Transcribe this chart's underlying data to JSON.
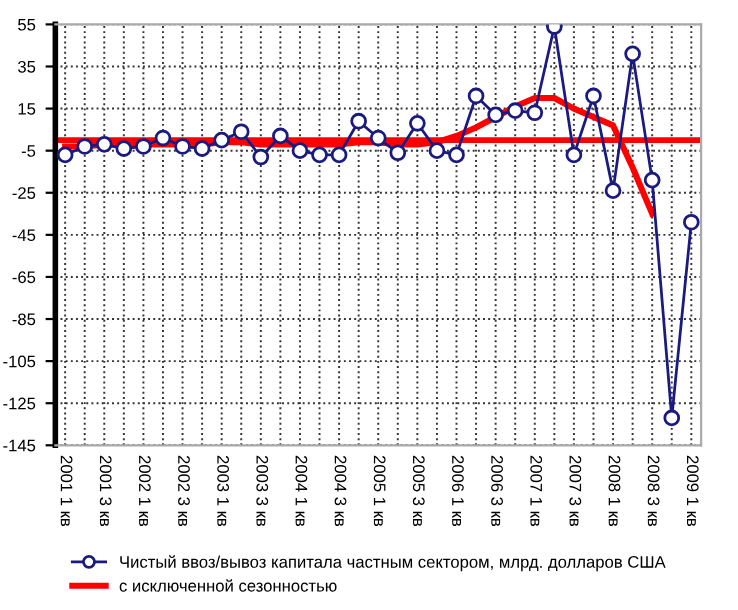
{
  "chart_data": {
    "type": "line",
    "categories": [
      "2001 1 кв",
      null,
      "2001 3 кв",
      null,
      "2002 1 кв",
      null,
      "2002 3 кв",
      null,
      "2003 1 кв",
      null,
      "2003 3 кв",
      null,
      "2004 1 кв",
      null,
      "2004 3 кв",
      null,
      "2005 1 кв",
      null,
      "2005 3 кв",
      null,
      "2006 1 кв",
      null,
      "2006 3 кв",
      null,
      "2007 1 кв",
      null,
      "2007 3 кв",
      null,
      "2008 1 кв",
      null,
      "2008 3 кв",
      null,
      "2009 1 кв"
    ],
    "series": [
      {
        "name": "Чистый ввоз/вывоз капитала частным сектором, млрд. долларов США",
        "color": "#1a1a80",
        "marker": "circle",
        "values": [
          -7,
          -3,
          -2,
          -4,
          -3,
          1,
          -3,
          -4,
          0,
          4,
          -8,
          2,
          -5,
          -7,
          -7,
          9,
          1,
          -6,
          8,
          -5,
          -7,
          21,
          12,
          14,
          13,
          54,
          -7,
          21,
          -24,
          41,
          -19,
          -132,
          -39
        ]
      },
      {
        "name": "с исключенной сезонностью",
        "color": "#ff0000",
        "marker": "none",
        "values": [
          -3,
          -3,
          -2,
          -2,
          -2,
          -2,
          -2,
          -2,
          -1,
          -1,
          -2,
          -2,
          -2,
          -2,
          -2,
          -1,
          -1,
          -2,
          -2,
          -1,
          2,
          6,
          11,
          16,
          20,
          20,
          15,
          11,
          7,
          -13,
          -35,
          null,
          null
        ]
      }
    ],
    "ylim": [
      -145,
      55
    ],
    "yticks": [
      -145,
      -125,
      -105,
      -85,
      -65,
      -45,
      -25,
      -5,
      15,
      35,
      55
    ],
    "ref_lines": [
      {
        "axis": "y",
        "value": 0,
        "color": "#ff0000"
      }
    ],
    "grid": true,
    "legend": "bottom"
  }
}
